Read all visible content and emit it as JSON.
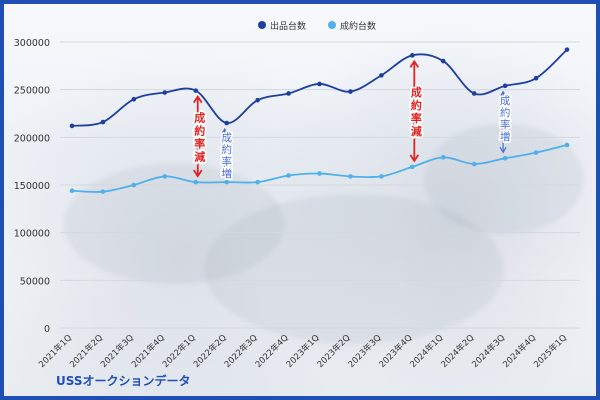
{
  "chart_data": {
    "type": "line",
    "categories": [
      "2021年1Q",
      "2021年2Q",
      "2021年3Q",
      "2021年4Q",
      "2022年1Q",
      "2022年2Q",
      "2022年3Q",
      "2022年4Q",
      "2023年1Q",
      "2023年2Q",
      "2023年3Q",
      "2023年4Q",
      "2024年1Q",
      "2024年2Q",
      "2024年3Q",
      "2024年4Q",
      "2025年1Q"
    ],
    "series": [
      {
        "name": "出品台数",
        "color": "#1e3f9c",
        "values": [
          212000,
          216000,
          240000,
          247000,
          249000,
          215000,
          239000,
          246000,
          256000,
          248000,
          265000,
          286000,
          280000,
          246000,
          254000,
          262000,
          292000
        ]
      },
      {
        "name": "成約台数",
        "color": "#4fb0ec",
        "values": [
          144000,
          143000,
          150000,
          159000,
          153000,
          153000,
          153000,
          160000,
          162000,
          159000,
          159000,
          169000,
          179000,
          172000,
          178000,
          184000,
          192000
        ]
      }
    ],
    "ylim": [
      0,
      300000
    ],
    "yticks": [
      0,
      50000,
      100000,
      150000,
      200000,
      250000,
      300000
    ],
    "legend_position": "top-center",
    "grid": true,
    "annotations": [
      {
        "text": "成約率減",
        "category_index": 4,
        "color": "#e02424",
        "type": "decrease"
      },
      {
        "text": "成約率増",
        "category_index": 5,
        "color": "#4a6fd4",
        "type": "increase"
      },
      {
        "text": "成約率減",
        "category_index": 11,
        "color": "#e02424",
        "type": "decrease"
      },
      {
        "text": "成約率増",
        "category_index": 14,
        "color": "#4a6fd4",
        "type": "increase"
      }
    ]
  },
  "source_label": "USSオークションデータ"
}
